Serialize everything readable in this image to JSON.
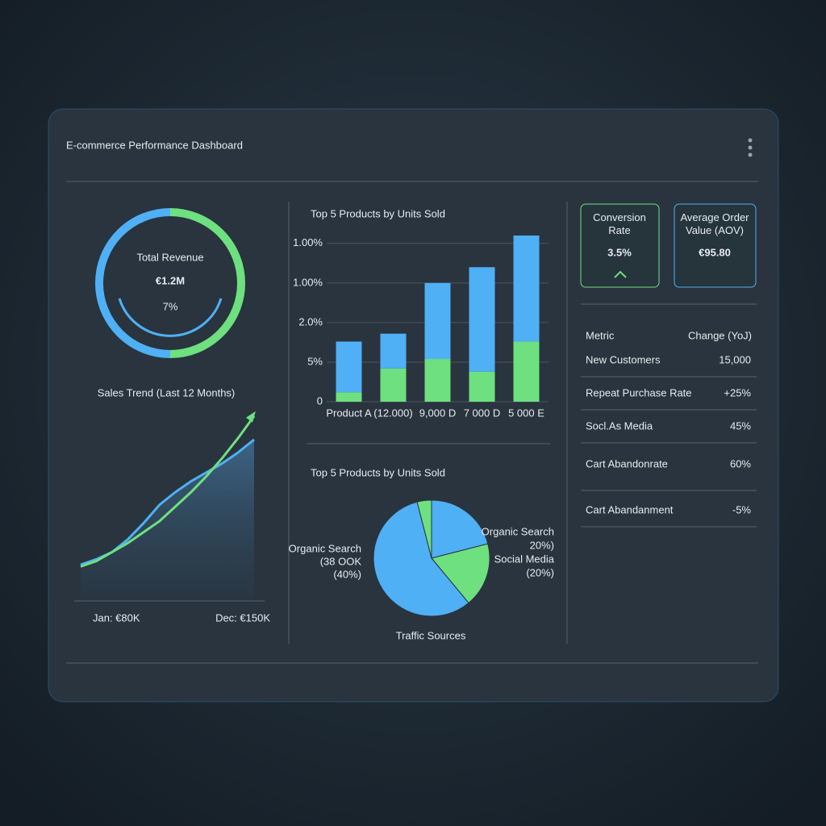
{
  "header": {
    "title": "E-commerce Performance Dashboard"
  },
  "revenue": {
    "label": "Total Revenue",
    "value": "€1.2M",
    "change": "7%"
  },
  "sales_trend": {
    "type": "line",
    "title": "Sales Trend (Last 12 Months)",
    "start_label": "Jan: €80K",
    "end_label": "Dec: €150K",
    "ylim": [
      0,
      105
    ],
    "series": [
      {
        "color": "#4fb0f5",
        "values": [
          20,
          23,
          27,
          34,
          43,
          53,
          60,
          66,
          71,
          76,
          82,
          89
        ]
      },
      {
        "color": "#6ee07f",
        "values": [
          19,
          22,
          27,
          32,
          38,
          44,
          52,
          60,
          69,
          79,
          90,
          102
        ]
      }
    ]
  },
  "bar_chart": {
    "type": "bar",
    "title": "Top 5 Products by Units Sold",
    "categories": [
      "Product A",
      "(12.000)",
      "9,000 D",
      "7 000 D",
      "5 000 E"
    ],
    "series": [
      {
        "color": "#6ee07f",
        "values": [
          6,
          21,
          27,
          19,
          38
        ]
      },
      {
        "color": "#4fb0f5",
        "values": [
          32,
          22,
          48,
          66,
          67
        ]
      }
    ],
    "ylim": [
      0,
      105
    ],
    "yticks": [
      0,
      {
        "value": 25,
        "label": "5%"
      },
      {
        "value": 50,
        "label": "2.0%"
      },
      {
        "value": 75,
        "label": "1.00%"
      },
      {
        "value": 100,
        "label": "1.00%"
      }
    ],
    "grid": true
  },
  "pie_chart": {
    "type": "pie",
    "title": "Top 5 Products by Units Sold",
    "caption": "Traffic Sources",
    "values": [
      21,
      18,
      57,
      4
    ],
    "colors": [
      "#4fb0f5",
      "#6ee07f",
      "#4fb0f5",
      "#6ee07f"
    ],
    "annotations_left": [
      "Organic Search",
      "(38 OOK",
      "(40%)"
    ],
    "annotations_right": [
      "Organic Search",
      "20%)",
      "Social Media",
      "(20%)"
    ]
  },
  "kpis": [
    {
      "label": "Conversion Rate",
      "value": "3.5%"
    },
    {
      "label": "Average Order Value (AOV)",
      "value": "€95.80"
    }
  ],
  "table": {
    "header": [
      "Metric",
      "Change (YoJ)"
    ],
    "rows": [
      [
        "New Customers",
        "15,000"
      ],
      [
        "Repeat Purchase Rate",
        "+25%"
      ],
      [
        "Socl.As Media",
        "45%"
      ],
      [
        "Cart Abandonrate",
        "60%"
      ],
      [
        "Cart Abandanment",
        "-5%"
      ]
    ]
  }
}
